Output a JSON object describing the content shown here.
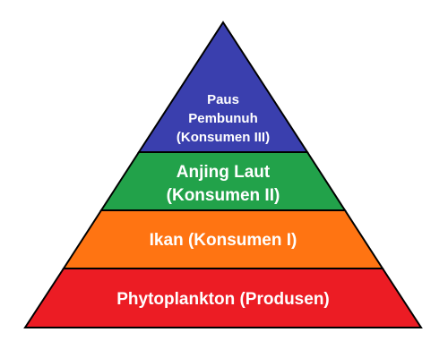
{
  "pyramid": {
    "levels": [
      {
        "id": "top",
        "lines": [
          "Paus",
          "Pembunuh",
          "(Konsumen III)"
        ],
        "color": "#3a3fae"
      },
      {
        "id": "upper-middle",
        "lines": [
          "Anjing Laut",
          "(Konsumen II)"
        ],
        "color": "#22a24a"
      },
      {
        "id": "lower-middle",
        "lines": [
          "Ikan (Konsumen I)"
        ],
        "color": "#ff7412"
      },
      {
        "id": "bottom",
        "lines": [
          "Phytoplankton (Produsen)"
        ],
        "color": "#ec1c24"
      }
    ],
    "outline_color": "#000000"
  }
}
